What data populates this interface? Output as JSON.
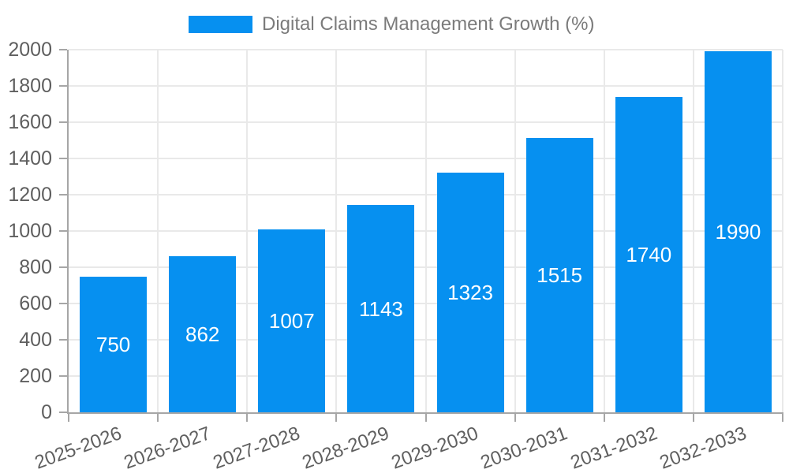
{
  "chart_data": {
    "type": "bar",
    "legend": "Digital Claims Management Growth (%)",
    "categories": [
      "2025-2026",
      "2026-2027",
      "2027-2028",
      "2028-2029",
      "2029-2030",
      "2030-2031",
      "2031-2032",
      "2032-2033"
    ],
    "values": [
      750,
      862,
      1007,
      1143,
      1323,
      1515,
      1740,
      1990
    ],
    "xlabel": "",
    "ylabel": "",
    "ylim": [
      0,
      2000
    ],
    "yticks": [
      0,
      200,
      400,
      600,
      800,
      1000,
      1200,
      1400,
      1600,
      1800,
      2000
    ],
    "grid": true,
    "legend_position": "top-center",
    "x_tick_label_rotation_deg": -20,
    "bar_value_labels_inside": true,
    "colors": {
      "bar": "#0690f0",
      "bar_label": "#ffffff",
      "axis": "#a6a6a6",
      "grid": "#e9e9e9",
      "tick_label": "#5f5f5f",
      "legend_text": "#7b7b7b",
      "background": "#ffffff"
    }
  }
}
